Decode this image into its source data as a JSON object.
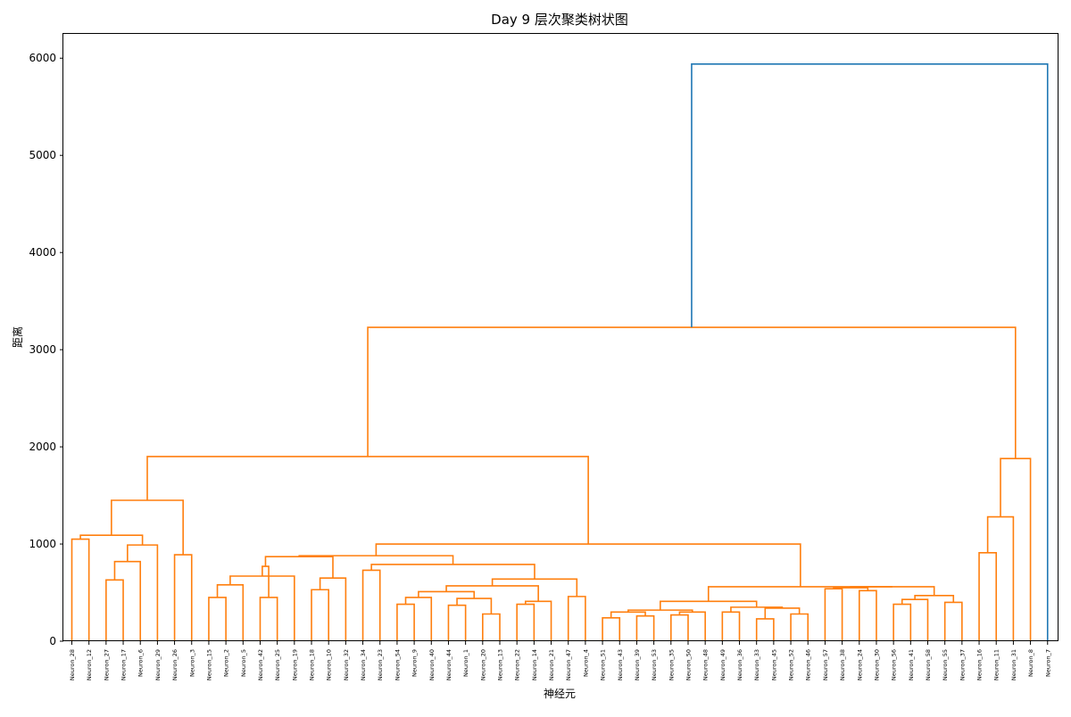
{
  "chart_data": {
    "type": "dendrogram",
    "title": "Day 9 层次聚类树状图",
    "xlabel": "神经元",
    "ylabel": "距离",
    "ylim": [
      0,
      6250
    ],
    "yticks": [
      0,
      1000,
      2000,
      3000,
      4000,
      5000,
      6000
    ],
    "grid": false,
    "colors": {
      "cluster": "#ff7f0e",
      "root": "#1f77b4"
    },
    "leaves": [
      "Neuron_28",
      "Neuron_12",
      "Neuron_27",
      "Neuron_17",
      "Neuron_6",
      "Neuron_29",
      "Neuron_26",
      "Neuron_3",
      "Neuron_15",
      "Neuron_2",
      "Neuron_5",
      "Neuron_42",
      "Neuron_25",
      "Neuron_19",
      "Neuron_18",
      "Neuron_10",
      "Neuron_32",
      "Neuron_34",
      "Neuron_23",
      "Neuron_54",
      "Neuron_9",
      "Neuron_40",
      "Neuron_44",
      "Neuron_1",
      "Neuron_20",
      "Neuron_13",
      "Neuron_22",
      "Neuron_14",
      "Neuron_21",
      "Neuron_47",
      "Neuron_4",
      "Neuron_51",
      "Neuron_43",
      "Neuron_39",
      "Neuron_53",
      "Neuron_35",
      "Neuron_50",
      "Neuron_48",
      "Neuron_49",
      "Neuron_36",
      "Neuron_33",
      "Neuron_45",
      "Neuron_52",
      "Neuron_46",
      "Neuron_57",
      "Neuron_38",
      "Neuron_24",
      "Neuron_30",
      "Neuron_56",
      "Neuron_41",
      "Neuron_58",
      "Neuron_55",
      "Neuron_37",
      "Neuron_16",
      "Neuron_11",
      "Neuron_31",
      "Neuron_8",
      "Neuron_7"
    ],
    "merges": [
      {
        "a": 0,
        "b": 1,
        "height": 1050
      },
      {
        "a": 2,
        "b": 3,
        "height": 630
      },
      {
        "a": "m1",
        "b": 4,
        "height": 820
      },
      {
        "a": "m2",
        "b": 5,
        "height": 990
      },
      {
        "a": "m0",
        "b": "m3",
        "height": 1090
      },
      {
        "a": 6,
        "b": 7,
        "height": 890
      },
      {
        "a": "m4",
        "b": "m5",
        "height": 1450
      },
      {
        "a": 8,
        "b": 9,
        "height": 450
      },
      {
        "a": "m7",
        "b": 10,
        "height": 580
      },
      {
        "a": 11,
        "b": 12,
        "height": 450
      },
      {
        "a": "m8",
        "b": 13,
        "height": 670
      },
      {
        "a": "m9",
        "b": "m10",
        "height": 770
      },
      {
        "a": 14,
        "b": 15,
        "height": 530
      },
      {
        "a": "m12",
        "b": 16,
        "height": 650
      },
      {
        "a": "m11",
        "b": "m13",
        "height": 870
      },
      {
        "a": 17,
        "b": 18,
        "height": 730
      },
      {
        "a": 19,
        "b": 20,
        "height": 380
      },
      {
        "a": "m16",
        "b": 21,
        "height": 450
      },
      {
        "a": 22,
        "b": 23,
        "height": 370
      },
      {
        "a": 24,
        "b": 25,
        "height": 280
      },
      {
        "a": "m18",
        "b": "m19",
        "height": 440
      },
      {
        "a": "m17",
        "b": "m20",
        "height": 510
      },
      {
        "a": 26,
        "b": 27,
        "height": 380
      },
      {
        "a": "m22",
        "b": 28,
        "height": 410
      },
      {
        "a": "m21",
        "b": "m23",
        "height": 570
      },
      {
        "a": 29,
        "b": 30,
        "height": 460
      },
      {
        "a": "m24",
        "b": "m25",
        "height": 640
      },
      {
        "a": "m15",
        "b": "m26",
        "height": 790
      },
      {
        "a": "m14",
        "b": "m27",
        "height": 880
      },
      {
        "a": 31,
        "b": 32,
        "height": 240
      },
      {
        "a": 33,
        "b": 34,
        "height": 260
      },
      {
        "a": "m29",
        "b": "m30",
        "height": 300
      },
      {
        "a": 35,
        "b": 36,
        "height": 270
      },
      {
        "a": "m32",
        "b": 37,
        "height": 300
      },
      {
        "a": "m31",
        "b": "m33",
        "height": 320
      },
      {
        "a": 38,
        "b": 39,
        "height": 300
      },
      {
        "a": 40,
        "b": 41,
        "height": 230
      },
      {
        "a": 42,
        "b": 43,
        "height": 280
      },
      {
        "a": "m36",
        "b": "m37",
        "height": 340
      },
      {
        "a": "m35",
        "b": "m38",
        "height": 350
      },
      {
        "a": "m34",
        "b": "m39",
        "height": 410
      },
      {
        "a": 44,
        "b": 45,
        "height": 540
      },
      {
        "a": 46,
        "b": 47,
        "height": 520
      },
      {
        "a": "m41",
        "b": "m42",
        "height": 550
      },
      {
        "a": 48,
        "b": 49,
        "height": 380
      },
      {
        "a": "m44",
        "b": 50,
        "height": 430
      },
      {
        "a": 51,
        "b": 52,
        "height": 400
      },
      {
        "a": "m45",
        "b": "m46",
        "height": 470
      },
      {
        "a": "m43",
        "b": "m47",
        "height": 560
      },
      {
        "a": "m40",
        "b": "m48",
        "height": 560
      },
      {
        "a": "m28",
        "b": "m49",
        "height": 1000
      },
      {
        "a": "m6",
        "b": "m50",
        "height": 1900
      },
      {
        "a": 53,
        "b": 54,
        "height": 910
      },
      {
        "a": "m52",
        "b": 55,
        "height": 1280
      },
      {
        "a": "m53",
        "b": 56,
        "height": 1880
      },
      {
        "a": "m51",
        "b": "m54",
        "height": 3230
      },
      {
        "a": "m55",
        "b": 57,
        "height": 5940,
        "color": "root"
      }
    ]
  }
}
